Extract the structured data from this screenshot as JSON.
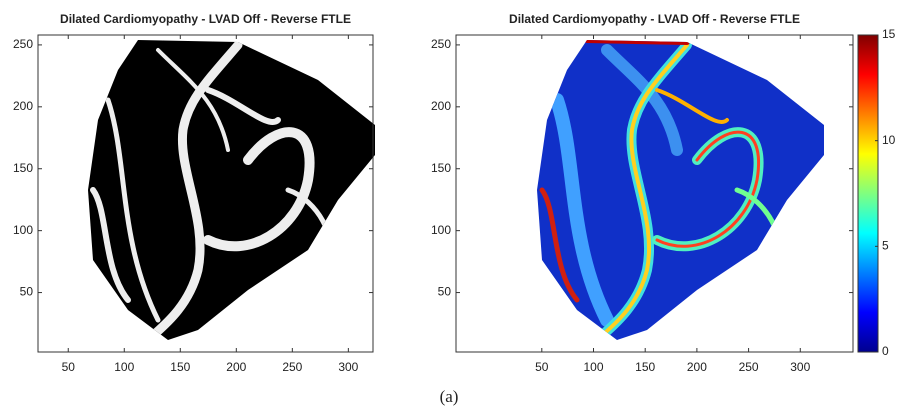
{
  "chart_data": [
    {
      "type": "image",
      "title": "Dilated Cardiomyopathy - LVAD Off - Reverse FTLE",
      "colormap": "gray",
      "xlim": [
        23,
        322
      ],
      "ylim": [
        2,
        258
      ],
      "xticks": [
        50,
        100,
        150,
        200,
        250,
        300
      ],
      "yticks": [
        50,
        100,
        150,
        200,
        250
      ]
    },
    {
      "type": "image",
      "title": "Dilated Cardiomyopathy - LVAD Off - Reverse FTLE",
      "colormap": "jet",
      "xlim": [
        -33,
        351
      ],
      "ylim": [
        2,
        258
      ],
      "xticks": [
        50,
        100,
        150,
        200,
        250,
        300
      ],
      "yticks": [
        50,
        100,
        150,
        200,
        250
      ],
      "colorbar": {
        "lim": [
          0,
          15
        ],
        "ticks": [
          0,
          5,
          10,
          15
        ]
      }
    }
  ],
  "caption": "(a)"
}
